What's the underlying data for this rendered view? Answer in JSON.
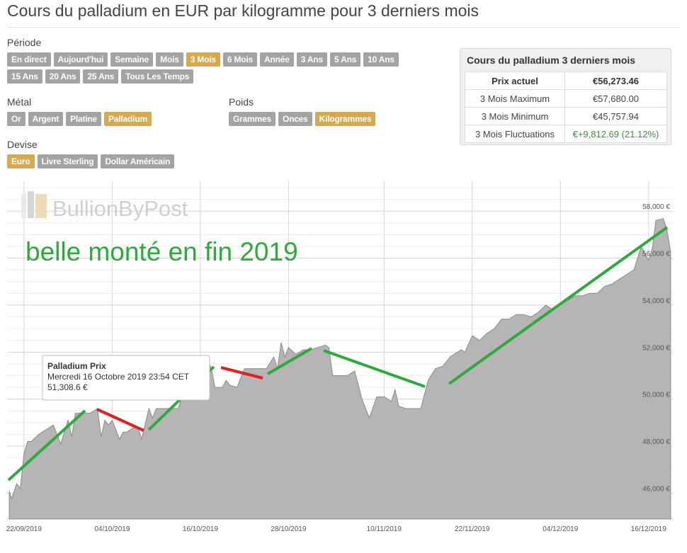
{
  "header": {
    "title": "Cours du palladium en EUR par kilogramme pour 3 derniers mois"
  },
  "period": {
    "label": "Période",
    "options": [
      "En direct",
      "Aujourd'hui",
      "Semaine",
      "Mois",
      "3 Mois",
      "6 Mois",
      "Année",
      "3 Ans",
      "5 Ans",
      "10 Ans",
      "15 Ans",
      "20 Ans",
      "25 Ans",
      "Tous Les Temps"
    ],
    "selected": "3 Mois"
  },
  "metal": {
    "label": "Métal",
    "options": [
      "Or",
      "Argent",
      "Platine",
      "Palladium"
    ],
    "selected": "Palladium"
  },
  "weight": {
    "label": "Poids",
    "options": [
      "Grammes",
      "Onces",
      "Kilogrammes"
    ],
    "selected": "Kilogrammes"
  },
  "currency": {
    "label": "Devise",
    "options": [
      "Euro",
      "Livre Sterling",
      "Dollar Américain"
    ],
    "selected": "Euro"
  },
  "stats": {
    "title": "Cours du palladium 3 derniers mois",
    "rows": [
      {
        "label": "Prix actuel",
        "value": "€56,273.46"
      },
      {
        "label": "3 Mois Maximum",
        "value": "€57,680.00"
      },
      {
        "label": "3 Mois Minimum",
        "value": "€45,757.94"
      },
      {
        "label": "3 Mois Fluctuations",
        "value": "€+9,812.69 (21.12%)"
      }
    ]
  },
  "colors": {
    "accent": "#d6a84f",
    "button": "#a3a3a3",
    "area": "#b5b5b5",
    "trend_up": "#2eaa3c",
    "trend_down": "#dd2222",
    "annotation": "#2eaa3c",
    "positive": "#3c8d3c"
  },
  "chart_data": {
    "type": "area",
    "watermark": "BullionByPost",
    "annotation": "belle monté en fin 2019",
    "tooltip": {
      "title": "Palladium Prix",
      "date": "Mercredi 16 Octobre 2019 23:54 CET",
      "value": "51,308.6 €"
    },
    "x_tick_labels": [
      "22/09/2019",
      "04/10/2019",
      "16/10/2019",
      "28/10/2019",
      "10/11/2019",
      "22/11/2019",
      "04/12/2019",
      "16/12/2019"
    ],
    "y_tick_labels": [
      "46,000 €",
      "48,000 €",
      "50,000 €",
      "52,000 €",
      "54,000 €",
      "56,000 €",
      "58,000 €"
    ],
    "y_ticks": [
      46000,
      48000,
      50000,
      52000,
      54000,
      56000,
      58000
    ],
    "ylim": [
      44900,
      59300
    ],
    "x_range_days": [
      -0.3,
      90.3
    ],
    "start_date": "2019-09-20",
    "grid": true,
    "series": [
      {
        "x": [
          0,
          0.3,
          1,
          1.5,
          2,
          2.5,
          3,
          4,
          5,
          6,
          7,
          8,
          8.5,
          9,
          9.5,
          10,
          11,
          12,
          12.5,
          13,
          13.5,
          14,
          15,
          15.5,
          16,
          17,
          17.5,
          18,
          19,
          19.5,
          20,
          21,
          22,
          23,
          24,
          25,
          26,
          27,
          27.5,
          28,
          28.5,
          29,
          29.5,
          30,
          31,
          32,
          33,
          34,
          35,
          36,
          36.5,
          37,
          37.5,
          38,
          39,
          40,
          41,
          42,
          43,
          43.5,
          44,
          45,
          46,
          47,
          48,
          49,
          50,
          51,
          52,
          52.5,
          53,
          54,
          55,
          56,
          57,
          58,
          59,
          60,
          61,
          61.5,
          62,
          63,
          64,
          65,
          66,
          67,
          68,
          69,
          70,
          71,
          72,
          73,
          74,
          75,
          76,
          77,
          78,
          79,
          80,
          81,
          82,
          83,
          84,
          85,
          86,
          87,
          87.5,
          88,
          89,
          89.5,
          90
        ],
        "y": [
          46100,
          45760,
          46400,
          46200,
          47700,
          48200,
          48200,
          48500,
          48700,
          48900,
          48100,
          49100,
          48400,
          49400,
          49400,
          49400,
          49400,
          49600,
          48400,
          49100,
          48900,
          49100,
          48300,
          48600,
          48600,
          48800,
          48800,
          48300,
          49600,
          49200,
          49600,
          49600,
          49600,
          49600,
          50700,
          51300,
          51000,
          51700,
          51300,
          50500,
          50500,
          50500,
          50800,
          50600,
          50500,
          51300,
          51300,
          51300,
          51300,
          51800,
          51300,
          52400,
          51800,
          52200,
          51900,
          52100,
          52100,
          52200,
          52300,
          52200,
          51000,
          51000,
          51000,
          51200,
          50000,
          49200,
          50100,
          50100,
          49900,
          50400,
          49700,
          49600,
          49600,
          49600,
          50800,
          51300,
          51400,
          51800,
          52000,
          52100,
          52000,
          52700,
          52500,
          52800,
          53000,
          53400,
          53400,
          53600,
          53600,
          53500,
          53700,
          54000,
          53800,
          54100,
          54200,
          54400,
          54400,
          54500,
          54500,
          54800,
          54900,
          55100,
          55300,
          55500,
          56500,
          55900,
          56400,
          57600,
          57680,
          57200,
          56273
        ]
      }
    ]
  }
}
